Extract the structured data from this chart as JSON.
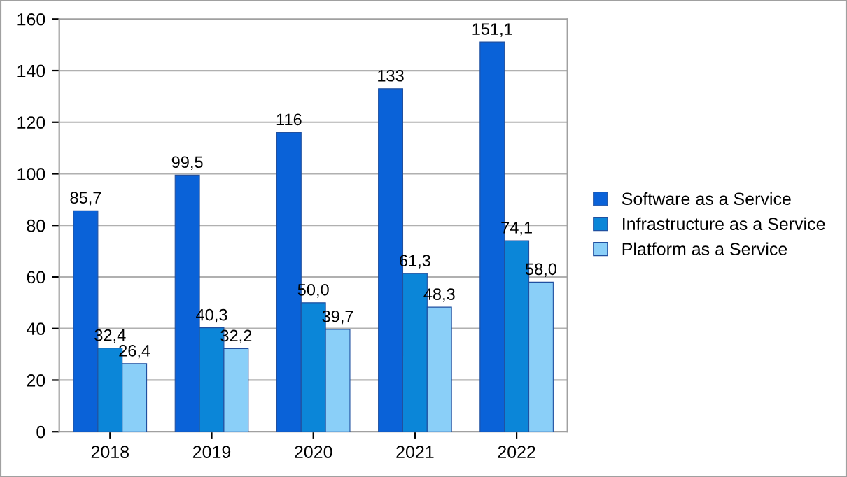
{
  "chart_data": {
    "type": "bar",
    "categories": [
      "2018",
      "2019",
      "2020",
      "2021",
      "2022"
    ],
    "series": [
      {
        "name": "Software as a Service",
        "color": "#0a62d8",
        "values": [
          85.7,
          99.5,
          116,
          133,
          151.1
        ],
        "value_labels": [
          "85,7",
          "99,5",
          "116",
          "133",
          "151,1"
        ]
      },
      {
        "name": "Infrastructure as a Service",
        "color": "#0b86d8",
        "values": [
          32.4,
          40.3,
          50.0,
          61.3,
          74.1
        ],
        "value_labels": [
          "32,4",
          "40,3",
          "50,0",
          "61,3",
          "74,1"
        ]
      },
      {
        "name": "Platform as a Service",
        "color": "#8acff8",
        "values": [
          26.4,
          32.2,
          39.7,
          48.3,
          58.0
        ],
        "value_labels": [
          "26,4",
          "32,2",
          "39,7",
          "48,3",
          "58,0"
        ]
      }
    ],
    "ylim": [
      0,
      160
    ],
    "yticks": [
      0,
      20,
      40,
      60,
      80,
      100,
      120,
      140,
      160
    ],
    "grid": "y",
    "legend": "right"
  }
}
